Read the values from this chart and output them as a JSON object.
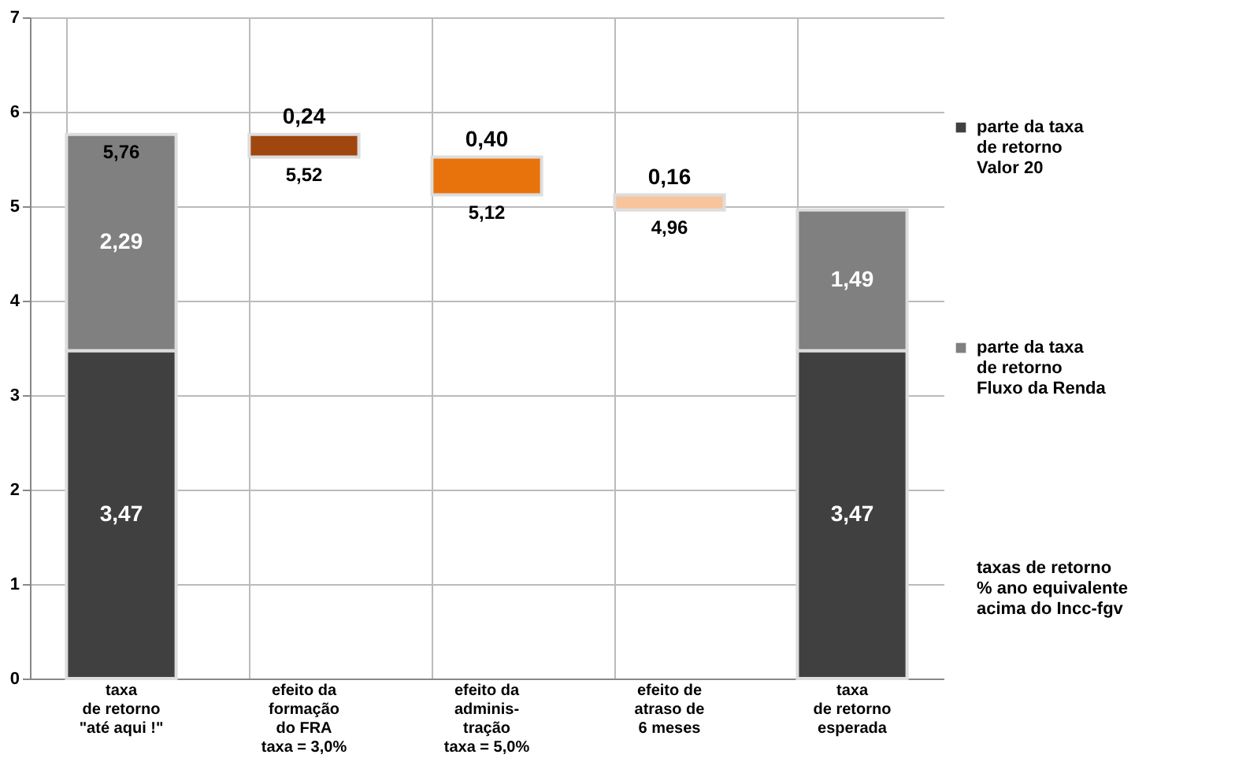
{
  "chart_data": {
    "type": "bar",
    "stacked": true,
    "categories": [
      "taxa\nde retorno\n\"até aqui !\"",
      "efeito da\nformação\ndo FRA\ntaxa = 3,0%",
      "efeito da\nadminis-\ntração\ntaxa = 5,0%",
      "efeito de\natraso de\n6 meses",
      "taxa\nde retorno\nesperada"
    ],
    "series": [
      {
        "name": "parte da taxa\nde retorno\nValor 20",
        "color": "#404040",
        "values": [
          3.47,
          null,
          null,
          null,
          3.47
        ],
        "value_labels": [
          "3,47",
          null,
          null,
          null,
          "3,47"
        ]
      },
      {
        "name": "parte da taxa\nde retorno\nFluxo da Renda",
        "color": "#808080",
        "values": [
          2.29,
          null,
          null,
          null,
          1.49
        ],
        "value_labels": [
          "2,29",
          null,
          null,
          null,
          "1,49"
        ]
      },
      {
        "values": [
          null,
          0.24,
          0.4,
          0.16,
          null
        ],
        "base": [
          null,
          5.52,
          5.12,
          4.96,
          null
        ],
        "colors": [
          null,
          "#a0460f",
          "#e8730c",
          "#f8c49c",
          null
        ],
        "value_labels": [
          null,
          "0,24",
          "0,40",
          "0,16",
          null
        ]
      }
    ],
    "annotations": [
      "taxas de retorno\n% ano equivalente\nacima do Incc-fgv",
      {
        "text": "5,76",
        "x": "taxa\nde retorno\n\"até aqui !\"",
        "y": 5.76
      },
      {
        "text": "5,52",
        "x": "efeito da\nformação\ndo FRA\ntaxa = 3,0%",
        "y": 5.52
      },
      {
        "text": "5,12",
        "x": "efeito da\nadminis-\ntração\ntaxa = 5,0%",
        "y": 5.12
      },
      {
        "text": "4,96",
        "x": "efeito de\natraso de\n6 meses",
        "y": 4.96
      }
    ],
    "ylim": [
      0,
      7
    ],
    "yticks": [
      0,
      1,
      2,
      3,
      4,
      5,
      6,
      7
    ],
    "grid": true,
    "legend": "right"
  }
}
